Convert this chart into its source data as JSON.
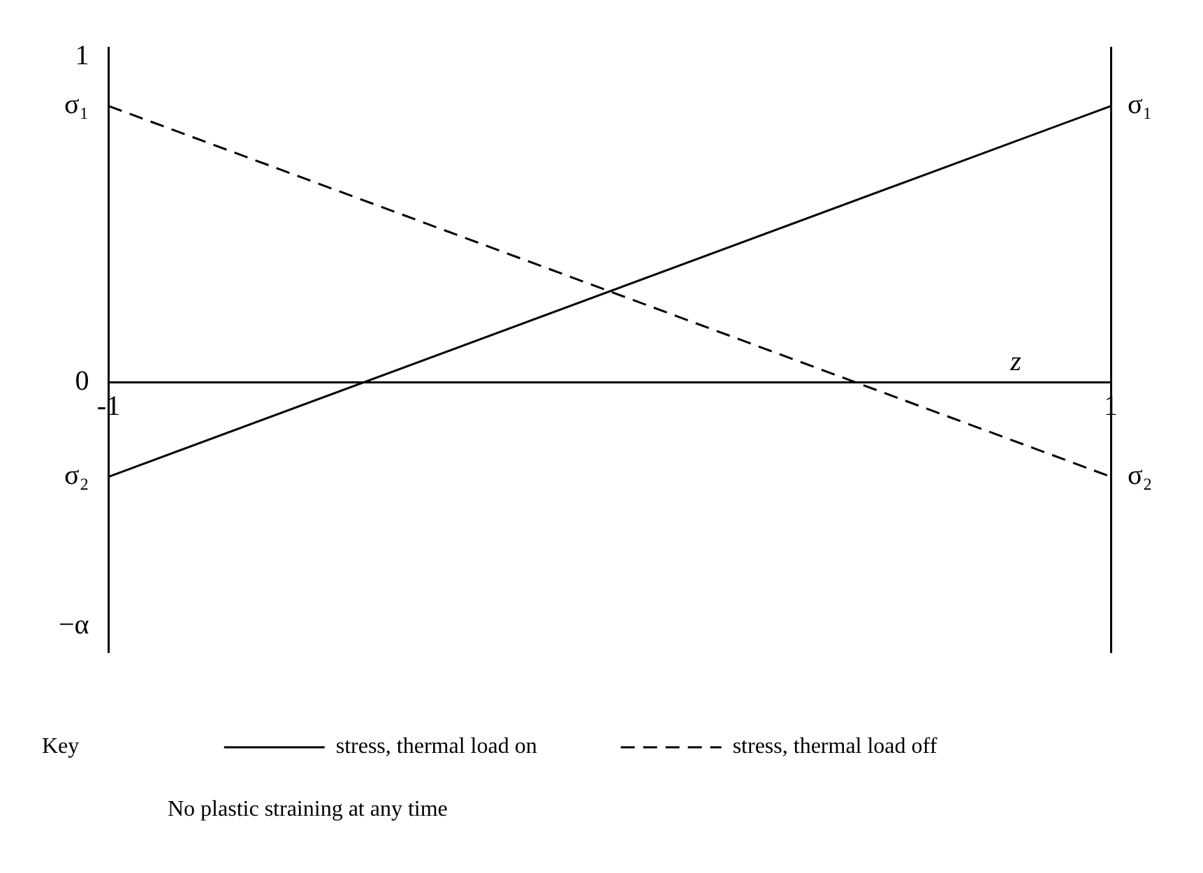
{
  "chart_data": {
    "type": "line",
    "xlabel": "z",
    "legend_title": "Key",
    "x": [
      -1,
      1
    ],
    "series": [
      {
        "name": "stress, thermal load on",
        "color": "#000000",
        "values": [
          -0.29,
          0.85
        ],
        "line_style": "solid"
      },
      {
        "name": "stress, thermal load off",
        "color": "#000000",
        "values": [
          0.85,
          -0.29
        ],
        "line_style": "dashed"
      }
    ],
    "xlim": [
      -1,
      1
    ],
    "xticks": [
      -1,
      1
    ],
    "ylim": [
      -0.83,
      1.03
    ],
    "yticks": [
      {
        "value": 1,
        "label": "1"
      },
      {
        "value": 0.85,
        "label": "σ₁"
      },
      {
        "value": 0,
        "label": "0"
      },
      {
        "value": -0.29,
        "label": "σ₂"
      },
      {
        "value": -0.75,
        "label": "−α"
      }
    ],
    "grid": false,
    "legend": "bottom",
    "marker": "none",
    "annotations": [
      {
        "text": "σ₁",
        "x": 1,
        "y": 0.85
      },
      {
        "text": "σ₂",
        "x": 1,
        "y": -0.29
      },
      "No plastic straining at any time"
    ]
  }
}
